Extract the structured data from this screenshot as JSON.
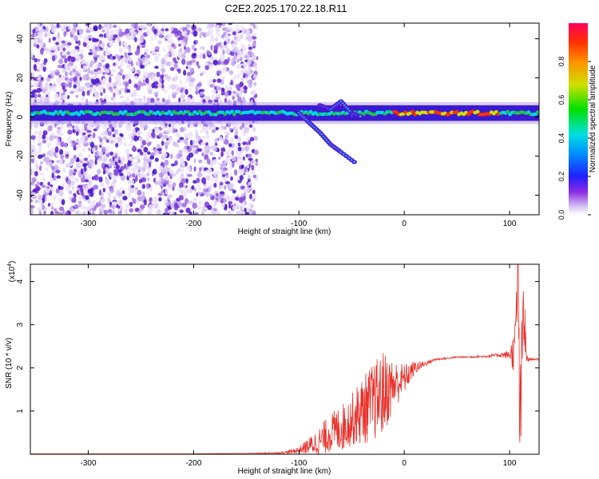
{
  "figure": {
    "title": "C2E2.2025.170.22.18.R11"
  },
  "chart_data": [
    {
      "type": "heatmap",
      "xlabel": "Height of straight line (km)",
      "ylabel": "Frequency (Hz)",
      "xlim": [
        -355,
        128
      ],
      "ylim": [
        -50,
        48
      ],
      "xticks": [
        -300,
        -200,
        -100,
        0,
        100
      ],
      "yticks": [
        -40,
        -20,
        0,
        20,
        40
      ],
      "colorbar": {
        "label": "Normalized spectral amplitude",
        "range": [
          0,
          1
        ],
        "ticks": [
          0.0,
          0.2,
          0.4,
          0.6,
          0.8
        ],
        "colormap": "rainbow"
      },
      "features": [
        {
          "kind": "noise_region",
          "x_range": [
            -355,
            -140
          ],
          "f_range": [
            -50,
            48
          ]
        },
        {
          "kind": "carrier_band",
          "x_range": [
            -355,
            128
          ],
          "f_center": 2,
          "f_width": 4
        },
        {
          "kind": "scintillation_trace",
          "points": [
            [
              -100,
              2
            ],
            [
              -90,
              -3
            ],
            [
              -80,
              -8
            ],
            [
              -70,
              -14
            ],
            [
              -60,
              -18
            ],
            [
              -45,
              -24
            ]
          ]
        },
        {
          "kind": "scintillation_trace",
          "points": [
            [
              -80,
              6
            ],
            [
              -70,
              4
            ],
            [
              -60,
              8
            ],
            [
              -50,
              2
            ],
            [
              -40,
              0
            ]
          ]
        }
      ]
    },
    {
      "type": "line",
      "xlabel": "Height of straight line (km)",
      "ylabel": "SNR (10 * v/v)",
      "y_multiplier_label": "(x10^4)",
      "xlim": [
        -355,
        128
      ],
      "ylim": [
        0,
        4.4
      ],
      "xticks": [
        -300,
        -200,
        -100,
        0,
        100
      ],
      "yticks": [
        1,
        2,
        3,
        4
      ],
      "series": [
        {
          "color": "#e8302a",
          "x": [
            -355,
            -300,
            -250,
            -200,
            -150,
            -120,
            -110,
            -100,
            -90,
            -80,
            -70,
            -60,
            -50,
            -40,
            -30,
            -20,
            -10,
            0,
            10,
            20,
            30,
            40,
            50,
            60,
            70,
            80,
            90,
            100,
            105,
            108,
            110,
            113,
            116,
            120,
            128
          ],
          "y": [
            0.01,
            0.01,
            0.01,
            0.01,
            0.02,
            0.03,
            0.05,
            0.1,
            0.2,
            0.3,
            0.5,
            0.6,
            0.8,
            1.0,
            1.2,
            1.4,
            1.6,
            1.75,
            2.0,
            2.1,
            2.2,
            2.22,
            2.25,
            2.25,
            2.26,
            2.27,
            2.3,
            2.3,
            2.4,
            4.3,
            0.3,
            3.5,
            2.2,
            2.2,
            2.2
          ],
          "noise_amplitude": [
            0,
            0,
            0,
            0,
            0,
            0.02,
            0.04,
            0.08,
            0.2,
            0.35,
            0.45,
            0.55,
            0.6,
            0.8,
            0.9,
            1.0,
            0.6,
            0.35,
            0.15,
            0.06,
            0.03,
            0.02,
            0.02,
            0.02,
            0.02,
            0.03,
            0.05,
            0.1,
            0.6,
            1.5,
            1.5,
            1.2,
            0.1,
            0.02,
            0.02
          ]
        }
      ]
    }
  ]
}
